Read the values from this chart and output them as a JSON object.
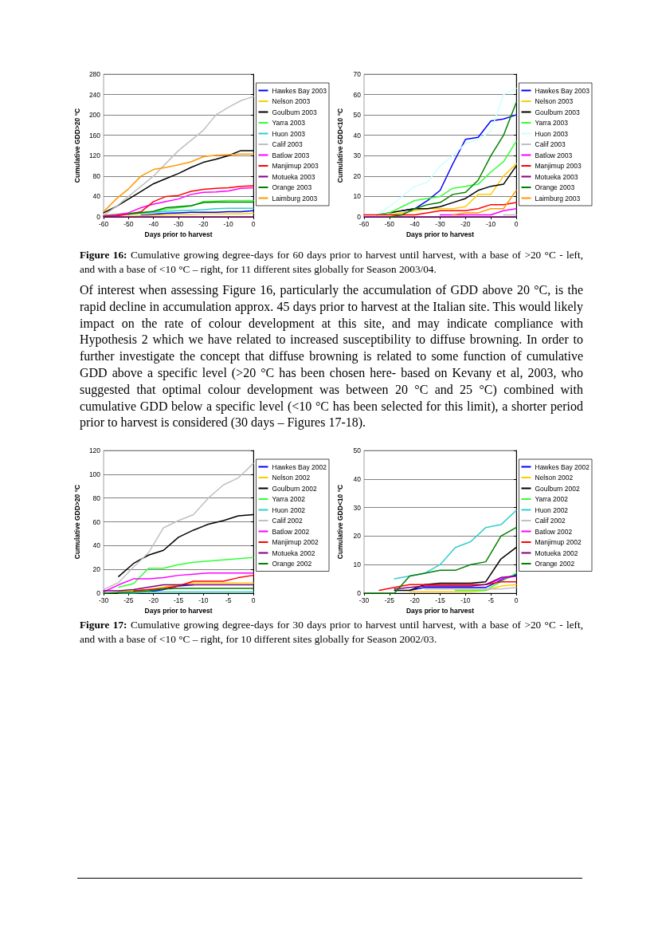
{
  "chart_data": [
    {
      "type": "line",
      "xlabel": "Days prior to harvest",
      "ylabel": "Cumulative GDD>20 °C",
      "x": [
        -60,
        -55,
        -50,
        -45,
        -40,
        -35,
        -30,
        -25,
        -20,
        -15,
        -10,
        -5,
        0
      ],
      "xlim": [
        -60,
        0
      ],
      "xticks": [
        -60,
        -50,
        -40,
        -30,
        -20,
        -10,
        0
      ],
      "ylim": [
        0,
        280
      ],
      "yticks": [
        0,
        40,
        80,
        120,
        160,
        200,
        240,
        280
      ],
      "grid": "y",
      "legend": "right",
      "marker": "none",
      "line_style": "solid",
      "annotations": [
        "Figure 16: Cumulative growing degree-days for 60 days prior to harvest until harvest, with a base of >20 °C - left, and with a base of <10 °C – right, for 11 different sites globally for Season 2003/04."
      ],
      "series": [
        {
          "name": "Hawkes Bay 2003",
          "color": "#0000ff",
          "values": [
            null,
            null,
            null,
            3,
            5,
            7,
            8,
            9,
            9,
            9,
            10,
            10,
            12
          ]
        },
        {
          "name": "Nelson 2003",
          "color": "#ffcc00",
          "values": [
            null,
            null,
            1,
            2,
            3,
            4,
            5,
            5,
            6,
            6,
            6,
            6,
            7
          ]
        },
        {
          "name": "Goulburn 2003",
          "color": "#000000",
          "values": [
            8,
            20,
            35,
            50,
            65,
            75,
            85,
            97,
            107,
            113,
            120,
            130,
            130
          ]
        },
        {
          "name": "Yarra 2003",
          "color": "#33ff33",
          "values": [
            3,
            5,
            7,
            9,
            10,
            15,
            18,
            21,
            30,
            31,
            32,
            32,
            32
          ]
        },
        {
          "name": "Huon 2003",
          "color": "#33cccc",
          "values": [
            1,
            3,
            5,
            7,
            9,
            11,
            12,
            13,
            14,
            16,
            17,
            17,
            17
          ]
        },
        {
          "name": "Calif 2003",
          "color": "#c0c0c0",
          "values": [
            3,
            20,
            40,
            60,
            80,
            105,
            130,
            150,
            170,
            200,
            215,
            228,
            236
          ]
        },
        {
          "name": "Batlow 2003",
          "color": "#ff00ff",
          "values": [
            2,
            4,
            8,
            18,
            25,
            30,
            35,
            44,
            48,
            49,
            51,
            56,
            57
          ]
        },
        {
          "name": "Manjimup 2003",
          "color": "#ff0000",
          "values": [
            1,
            2,
            5,
            10,
            30,
            40,
            42,
            50,
            54,
            56,
            57,
            60,
            61
          ]
        },
        {
          "name": "Motueka 2003",
          "color": "#800080",
          "values": [
            0,
            0,
            0,
            0,
            0,
            0,
            0,
            0,
            0,
            0,
            0,
            0,
            0
          ]
        },
        {
          "name": "Orange 2003",
          "color": "#008000",
          "values": [
            null,
            null,
            6,
            8,
            11,
            18,
            20,
            22,
            28,
            29,
            29,
            29,
            29
          ]
        },
        {
          "name": "Laimburg 2003",
          "color": "#ff9900",
          "values": [
            10,
            35,
            55,
            80,
            93,
            97,
            102,
            108,
            118,
            121,
            122,
            123,
            123
          ]
        }
      ]
    },
    {
      "type": "line",
      "xlabel": "Days prior to harvest",
      "ylabel": "Cumulative GDD<10 °C",
      "x": [
        -60,
        -55,
        -50,
        -45,
        -40,
        -35,
        -30,
        -25,
        -20,
        -15,
        -10,
        -5,
        0
      ],
      "xlim": [
        -60,
        0
      ],
      "xticks": [
        -60,
        -50,
        -40,
        -30,
        -20,
        -10,
        0
      ],
      "ylim": [
        0,
        70
      ],
      "yticks": [
        0,
        10,
        20,
        30,
        40,
        50,
        60,
        70
      ],
      "grid": "y",
      "legend": "right",
      "marker": "none",
      "line_style": "solid",
      "annotations": [
        "Of interest when assessing Figure 16, particularly the accumulation of GDD above 20 °C, is the rapid decline in accumulation approx. 45 days prior to harvest at the Italian site. This would likely impact on the rate of colour development at this site, and may indicate compliance with Hypothesis 2 which we have related to increased susceptibility to diffuse browning. In order to further investigate the concept that diffuse browning is related to some function of cumulative GDD above a specific level (>20 °C has been chosen here- based on Kevany et al, 2003, who suggested that optimal colour development was between 20 °C and 25 °C) combined with cumulative GDD below a specific level (<10 °C has been selected for this limit), a shorter period prior to harvest is considered (30 days – Figures 17-18)."
      ],
      "series": [
        {
          "name": "Hawkes Bay 2003",
          "color": "#0000ff",
          "values": [
            null,
            null,
            null,
            3,
            4,
            8,
            13,
            26,
            38,
            39,
            47,
            48,
            50
          ]
        },
        {
          "name": "Nelson 2003",
          "color": "#ffcc00",
          "values": [
            null,
            null,
            1,
            2,
            3,
            4,
            4,
            4,
            5,
            11,
            11,
            20,
            26
          ]
        },
        {
          "name": "Goulburn 2003",
          "color": "#000000",
          "values": [
            null,
            1,
            2,
            3,
            4,
            4,
            5,
            7,
            9,
            13,
            15,
            16,
            25
          ]
        },
        {
          "name": "Yarra 2003",
          "color": "#33ff33",
          "values": [
            null,
            1,
            2,
            5,
            8,
            9,
            10,
            14,
            15,
            16,
            22,
            27,
            37
          ]
        },
        {
          "name": "Huon 2003",
          "color": "#ccffff",
          "values": [
            null,
            1,
            5,
            10,
            15,
            17,
            25,
            30,
            36,
            38,
            42,
            60,
            63
          ]
        },
        {
          "name": "Calif 2003",
          "color": "#c0c0c0",
          "values": [
            null,
            null,
            null,
            null,
            null,
            null,
            null,
            null,
            null,
            null,
            null,
            1,
            1
          ]
        },
        {
          "name": "Batlow 2003",
          "color": "#ff00ff",
          "values": [
            null,
            null,
            null,
            null,
            null,
            null,
            1,
            1,
            1,
            1,
            1,
            3,
            4
          ]
        },
        {
          "name": "Manjimup 2003",
          "color": "#ff0000",
          "values": [
            1,
            1,
            1,
            1,
            1,
            2,
            3,
            3,
            3,
            4,
            6,
            6,
            7
          ]
        },
        {
          "name": "Motueka 2003",
          "color": "#800080",
          "values": [
            0,
            0,
            0,
            0,
            0,
            0,
            0,
            0,
            0,
            0,
            0,
            0,
            0
          ]
        },
        {
          "name": "Orange 2003",
          "color": "#008000",
          "values": [
            null,
            null,
            0,
            1,
            4,
            6,
            7,
            11,
            12,
            18,
            30,
            40,
            56
          ]
        },
        {
          "name": "Laimburg 2003",
          "color": "#ff9900",
          "values": [
            null,
            null,
            null,
            null,
            null,
            null,
            null,
            1,
            2,
            2,
            4,
            4,
            13
          ]
        }
      ]
    },
    {
      "type": "line",
      "xlabel": "Days prior to harvest",
      "ylabel": "Cumulative GDD>20 °C",
      "x": [
        -30,
        -27,
        -24,
        -21,
        -18,
        -15,
        -12,
        -9,
        -6,
        -3,
        0
      ],
      "xlim": [
        -30,
        0
      ],
      "xticks": [
        -30,
        -25,
        -20,
        -15,
        -10,
        -5,
        0
      ],
      "ylim": [
        0,
        120
      ],
      "yticks": [
        0,
        20,
        40,
        60,
        80,
        100,
        120
      ],
      "grid": "y",
      "legend": "right",
      "marker": "none",
      "line_style": "solid",
      "annotations": [
        "Figure 17: Cumulative growing degree-days for 30 days prior to harvest until harvest, with a base of >20 °C - left, and with a base of <10 °C – right, for 10 different sites globally for Season 2002/03."
      ],
      "series": [
        {
          "name": "Hawkes Bay 2002",
          "color": "#0000ff",
          "values": [
            null,
            null,
            null,
            1,
            3,
            6,
            7,
            null,
            null,
            null,
            null
          ]
        },
        {
          "name": "Nelson 2002",
          "color": "#ffcc00",
          "values": [
            null,
            1,
            2,
            3,
            5,
            7,
            8.5,
            8.5,
            8.5,
            8.5,
            8.5
          ]
        },
        {
          "name": "Goulburn 2002",
          "color": "#000000",
          "values": [
            null,
            14,
            25,
            32,
            36,
            47,
            53,
            58,
            61,
            65,
            66
          ]
        },
        {
          "name": "Yarra 2002",
          "color": "#33ff33",
          "values": [
            null,
            5,
            8,
            21,
            21,
            24,
            26,
            27,
            28,
            29,
            30
          ]
        },
        {
          "name": "Huon 2002",
          "color": "#33cccc",
          "values": [
            null,
            0,
            0,
            1,
            1,
            1,
            1,
            1,
            1,
            1,
            1
          ]
        },
        {
          "name": "Calif 2002",
          "color": "#c0c0c0",
          "values": [
            3,
            9,
            22,
            34,
            55,
            61,
            66,
            80,
            91,
            97,
            109
          ]
        },
        {
          "name": "Batlow 2002",
          "color": "#ff00ff",
          "values": [
            1,
            7,
            12,
            12,
            13,
            15,
            16,
            17,
            17,
            17,
            17
          ]
        },
        {
          "name": "Manjimup 2002",
          "color": "#ff0000",
          "values": [
            null,
            null,
            2,
            3,
            4,
            6,
            10,
            10,
            10,
            13,
            15
          ]
        },
        {
          "name": "Motueka 2002",
          "color": "#800080",
          "values": [
            2,
            2,
            3,
            5,
            7,
            7,
            7,
            7,
            7,
            7,
            7
          ]
        },
        {
          "name": "Orange 2002",
          "color": "#008000",
          "values": [
            0,
            0.5,
            1,
            2,
            3.5,
            4,
            4,
            4,
            4,
            4,
            4
          ]
        }
      ]
    },
    {
      "type": "line",
      "xlabel": "Days prior to harvest",
      "ylabel": "Cumulative GDD<10 °C",
      "x": [
        -30,
        -27,
        -24,
        -21,
        -18,
        -15,
        -12,
        -9,
        -6,
        -3,
        0
      ],
      "xlim": [
        -30,
        0
      ],
      "xticks": [
        -30,
        -25,
        -20,
        -15,
        -10,
        -5,
        0
      ],
      "ylim": [
        0,
        50
      ],
      "yticks": [
        0,
        10,
        20,
        30,
        40,
        50
      ],
      "grid": "y",
      "legend": "right",
      "marker": "none",
      "line_style": "solid",
      "series": [
        {
          "name": "Hawkes Bay 2002",
          "color": "#0000ff",
          "values": [
            null,
            null,
            null,
            1,
            2,
            2,
            2,
            2,
            2,
            4.5,
            6.5
          ]
        },
        {
          "name": "Nelson 2002",
          "color": "#ffcc00",
          "values": [
            null,
            null,
            null,
            0.5,
            0.5,
            0.5,
            0.5,
            0.5,
            1,
            2.5,
            3
          ]
        },
        {
          "name": "Goulburn 2002",
          "color": "#000000",
          "values": [
            null,
            null,
            1,
            1,
            3,
            3.5,
            3.5,
            3.5,
            4,
            12,
            16
          ]
        },
        {
          "name": "Yarra 2002",
          "color": "#33ff33",
          "values": [
            null,
            null,
            null,
            null,
            null,
            null,
            1,
            1,
            1,
            4,
            7
          ]
        },
        {
          "name": "Huon 2002",
          "color": "#33cccc",
          "values": [
            null,
            null,
            5,
            6,
            7,
            10,
            16,
            18,
            23,
            24,
            29
          ]
        },
        {
          "name": "Calif 2002",
          "color": "#c0c0c0",
          "values": [
            null,
            null,
            null,
            null,
            1.5,
            1.5,
            1.5,
            1.5,
            1.5,
            1.5,
            2
          ]
        },
        {
          "name": "Batlow 2002",
          "color": "#ff00ff",
          "values": [
            null,
            null,
            null,
            null,
            null,
            null,
            null,
            null,
            3,
            5,
            6
          ]
        },
        {
          "name": "Manjimup 2002",
          "color": "#ff0000",
          "values": [
            null,
            1,
            2,
            3,
            3,
            3,
            3,
            3,
            3,
            4,
            4
          ]
        },
        {
          "name": "Motueka 2002",
          "color": "#800080",
          "values": [
            null,
            null,
            1.5,
            2,
            2.5,
            2.5,
            2.5,
            2.5,
            3,
            5.5,
            6
          ]
        },
        {
          "name": "Orange 2002",
          "color": "#008000",
          "values": [
            0,
            0,
            0,
            6,
            7,
            8,
            8,
            10,
            11,
            20,
            23
          ]
        }
      ]
    }
  ]
}
